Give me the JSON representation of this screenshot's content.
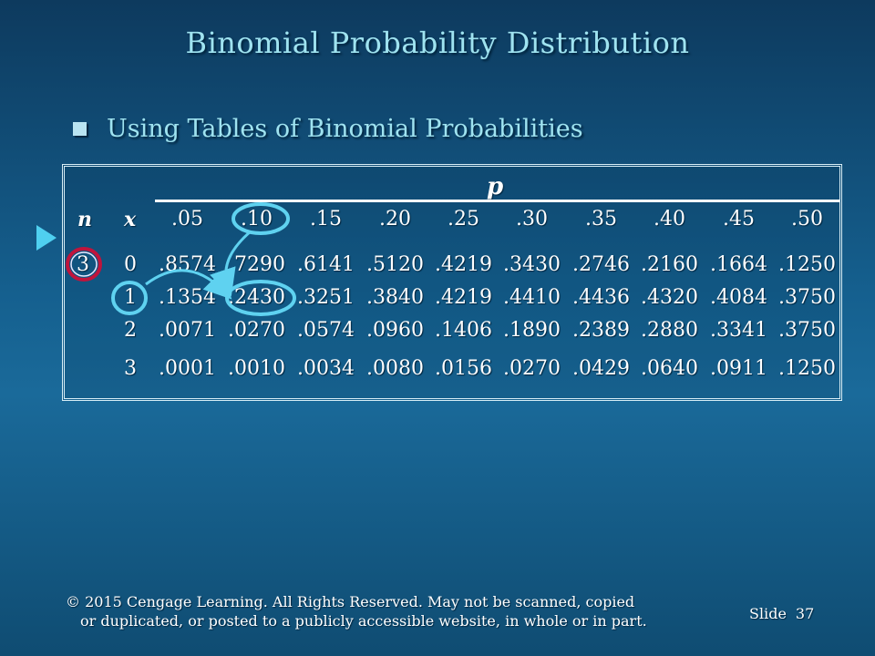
{
  "slide": {
    "title": "Binomial Probability Distribution",
    "bullet": "Using Tables of Binomial Probabilities",
    "footer_line1": "© 2015  Cengage Learning.  All Rights Reserved.  May not be scanned, copied",
    "footer_line2": "or duplicated, or posted to a publicly accessible website, in whole or in part.",
    "slide_label": "Slide",
    "slide_number": "37"
  },
  "table": {
    "p_label": "p",
    "n_label": "n",
    "x_label": "x",
    "p_values": [
      ".05",
      ".10",
      ".15",
      ".20",
      ".25",
      ".30",
      ".35",
      ".40",
      ".45",
      ".50"
    ],
    "rows": [
      {
        "n": "3",
        "x": "0",
        "values": [
          ".8574",
          ".7290",
          ".6141",
          ".5120",
          ".4219",
          ".3430",
          ".2746",
          ".2160",
          ".1664",
          ".1250"
        ]
      },
      {
        "n": "",
        "x": "1",
        "values": [
          ".1354",
          ".2430",
          ".3251",
          ".3840",
          ".4219",
          ".4410",
          ".4436",
          ".4320",
          ".4084",
          ".3750"
        ]
      },
      {
        "n": "",
        "x": "2",
        "values": [
          ".0071",
          ".0270",
          ".0574",
          ".0960",
          ".1406",
          ".1890",
          ".2389",
          ".2880",
          ".3341",
          ".3750"
        ]
      },
      {
        "n": "",
        "x": "3",
        "values": [
          ".0001",
          ".0010",
          ".0034",
          ".0080",
          ".0156",
          ".0270",
          ".0429",
          ".0640",
          ".0911",
          ".1250"
        ]
      }
    ]
  },
  "colors": {
    "title": "#9fe3f0",
    "highlight_n": "#c0143c",
    "highlight_x_p": "#5fd2f0",
    "annotation_arrow": "#5fd2f0"
  }
}
